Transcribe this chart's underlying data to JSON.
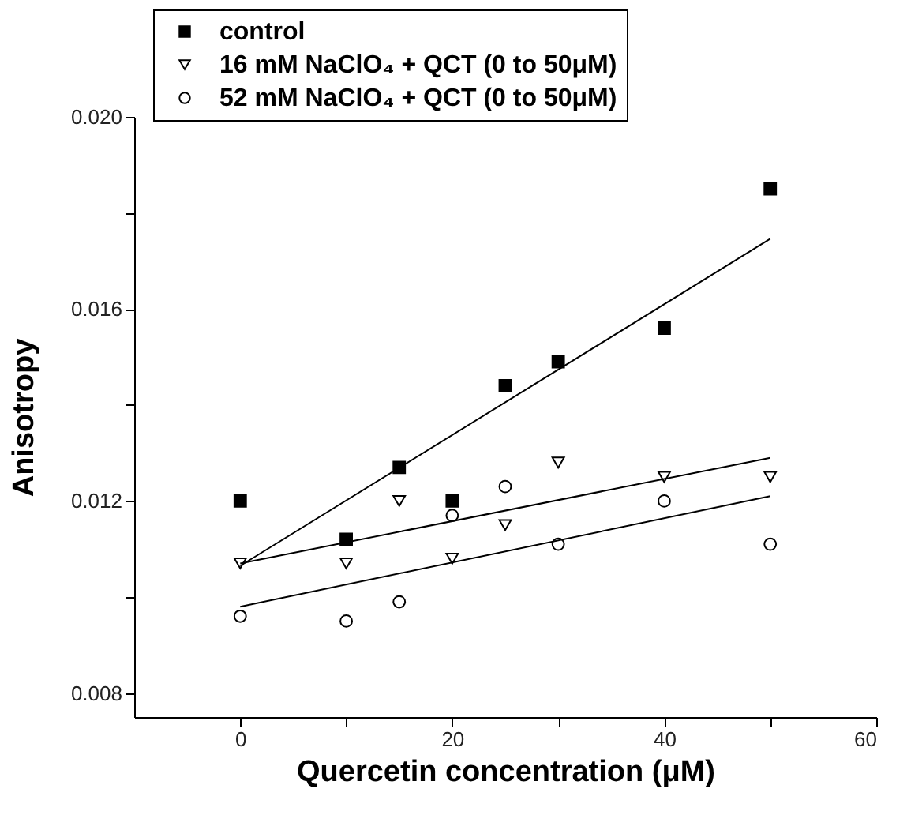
{
  "chart_data": {
    "type": "scatter",
    "xlabel": "Quercetin concentration (μM)",
    "ylabel": "Anisotropy",
    "xlim": [
      -10,
      60
    ],
    "xticks": [
      0,
      {
        "value": 10,
        "label": null
      },
      20,
      {
        "value": 30,
        "label": null
      },
      40,
      {
        "value": 50,
        "label": null
      },
      60
    ],
    "ylim": [
      0.0075,
      0.02
    ],
    "yticks": [
      {
        "value": 0.008,
        "label": "0.008"
      },
      {
        "value": 0.01,
        "label": null
      },
      {
        "value": 0.012,
        "label": "0.012"
      },
      {
        "value": 0.014,
        "label": null
      },
      {
        "value": 0.016,
        "label": "0.016"
      },
      {
        "value": 0.018,
        "label": null
      },
      {
        "value": 0.02,
        "label": "0.020"
      }
    ],
    "grid": false,
    "legend": "top left",
    "series": [
      {
        "name": "control",
        "marker": "square",
        "color": "#000000",
        "x": [
          0,
          10,
          15,
          20,
          25,
          30,
          40,
          50
        ],
        "values": [
          0.012,
          0.0112,
          0.0127,
          0.012,
          0.0144,
          0.0149,
          0.0156,
          0.0185
        ]
      },
      {
        "name": "16 mM NaClO₄ + QCT (0 to 50μM)",
        "marker": "triangle",
        "color": "#000000",
        "x": [
          0,
          10,
          15,
          20,
          25,
          30,
          40,
          50
        ],
        "values": [
          0.0107,
          0.0107,
          0.012,
          0.0108,
          0.0115,
          0.0128,
          0.0125,
          0.0125
        ]
      },
      {
        "name": "52 mM NaClO₄ + QCT (0 to 50μM)",
        "marker": "circle",
        "color": "#000000",
        "x": [
          0,
          10,
          15,
          20,
          25,
          30,
          40,
          50
        ],
        "values": [
          0.0096,
          0.0095,
          0.0099,
          0.0117,
          0.0123,
          0.0111,
          0.012,
          0.0111
        ]
      },
      {
        "type": "line",
        "line_style": "solid",
        "color": "#000000",
        "x": [
          0,
          50
        ],
        "values": [
          0.01065,
          0.01746
        ]
      },
      {
        "type": "line",
        "line_style": "solid",
        "color": "#000000",
        "x": [
          0,
          50
        ],
        "values": [
          0.0107,
          0.0129
        ]
      },
      {
        "type": "line",
        "line_style": "solid",
        "color": "#000000",
        "x": [
          0,
          50
        ],
        "values": [
          0.0098,
          0.0121
        ]
      }
    ]
  }
}
